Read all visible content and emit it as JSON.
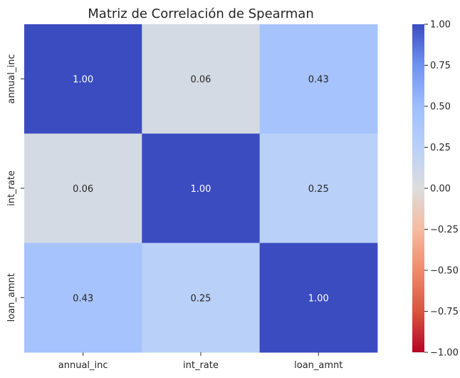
{
  "chart_data": {
    "type": "heatmap",
    "title": "Matriz de Correlación de Spearman",
    "x_labels": [
      "annual_inc",
      "int_rate",
      "loan_amnt"
    ],
    "y_labels": [
      "annual_inc",
      "int_rate",
      "loan_amnt"
    ],
    "values": [
      [
        1.0,
        0.06,
        0.43
      ],
      [
        0.06,
        1.0,
        0.25
      ],
      [
        0.43,
        0.25,
        1.0
      ]
    ],
    "value_format": "2 decimals",
    "colormap": "coolwarm_r",
    "vmin": -1.0,
    "vmax": 1.0,
    "colorbar_ticks": [
      "1.00",
      "0.75",
      "0.50",
      "0.25",
      "0.00",
      "−0.25",
      "−0.50",
      "−0.75",
      "−1.00"
    ],
    "colorbar_tick_values": [
      1.0,
      0.75,
      0.5,
      0.25,
      0.0,
      -0.25,
      -0.5,
      -0.75,
      -1.0
    ],
    "grid": false
  }
}
